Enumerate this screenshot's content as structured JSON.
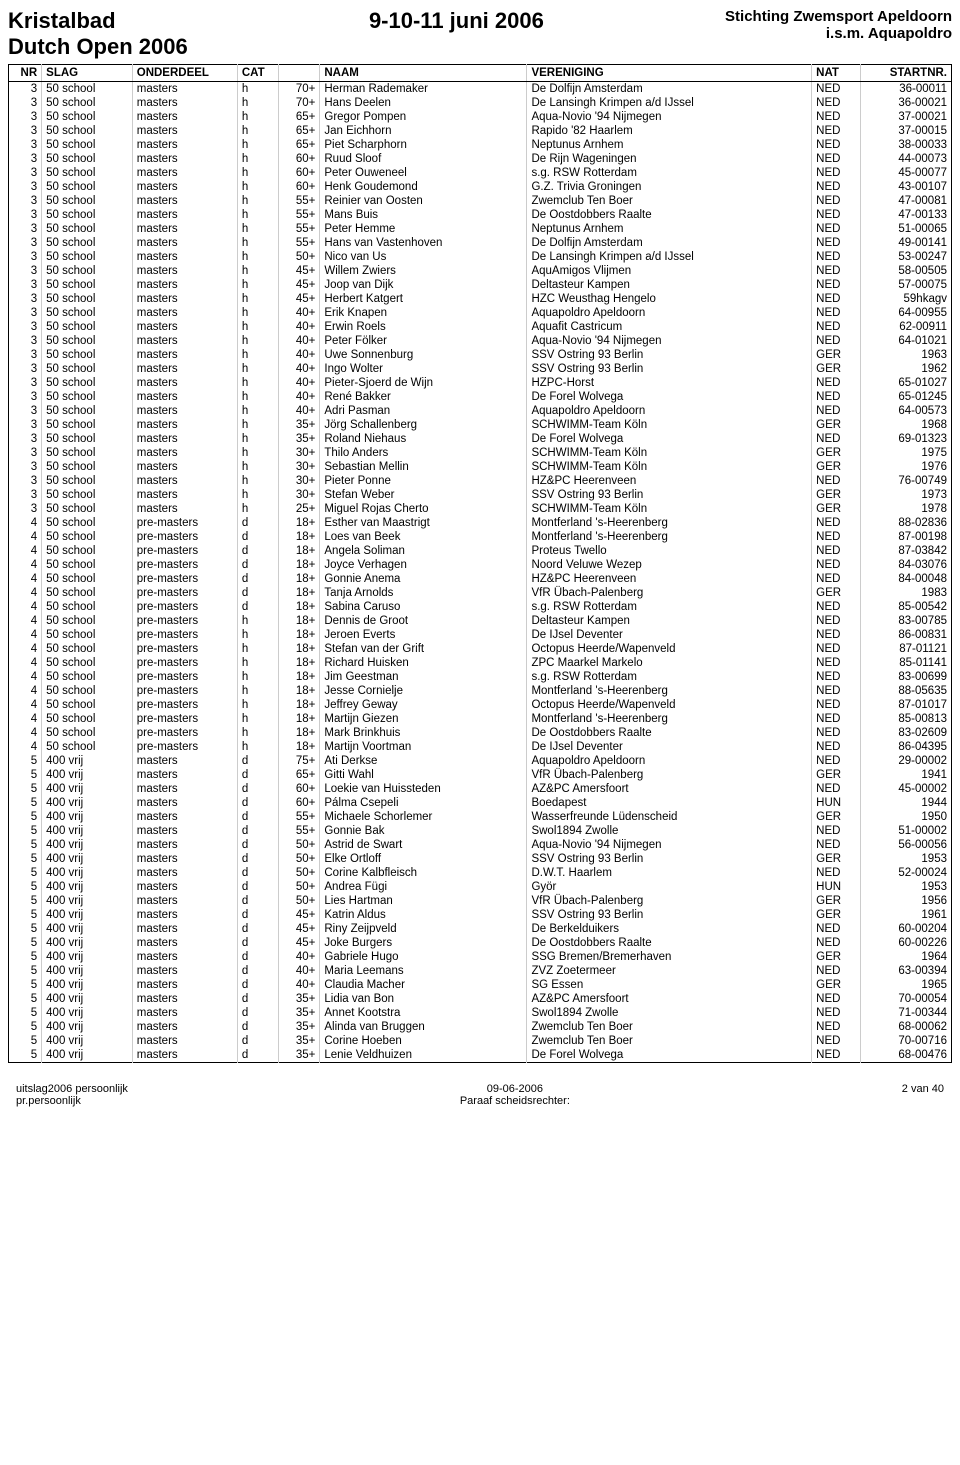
{
  "header": {
    "title_line1": "Kristalbad",
    "title_line2": "Dutch Open 2006",
    "date": "9-10-11 juni 2006",
    "org_line1": "Stichting Zwemsport Apeldoorn",
    "org_line2": "i.s.m. Aquapoldro"
  },
  "columns": [
    "NR",
    "SLAG",
    "ONDERDEEL",
    "CAT",
    "",
    "NAAM",
    "VERENIGING",
    "NAT",
    "STARTNR."
  ],
  "rows": [
    [
      "3",
      "50 school",
      "masters",
      "h",
      "70+",
      "Herman Rademaker",
      "De Dolfijn Amsterdam",
      "NED",
      "36-00011"
    ],
    [
      "3",
      "50 school",
      "masters",
      "h",
      "70+",
      "Hans Deelen",
      "De Lansingh Krimpen a/d IJssel",
      "NED",
      "36-00021"
    ],
    [
      "3",
      "50 school",
      "masters",
      "h",
      "65+",
      "Gregor Pompen",
      "Aqua-Novio '94 Nijmegen",
      "NED",
      "37-00021"
    ],
    [
      "3",
      "50 school",
      "masters",
      "h",
      "65+",
      "Jan Eichhorn",
      "Rapido '82 Haarlem",
      "NED",
      "37-00015"
    ],
    [
      "3",
      "50 school",
      "masters",
      "h",
      "65+",
      "Piet Scharphorn",
      "Neptunus Arnhem",
      "NED",
      "38-00033"
    ],
    [
      "3",
      "50 school",
      "masters",
      "h",
      "60+",
      "Ruud Sloof",
      "De Rijn Wageningen",
      "NED",
      "44-00073"
    ],
    [
      "3",
      "50 school",
      "masters",
      "h",
      "60+",
      "Peter Ouweneel",
      "s.g. RSW Rotterdam",
      "NED",
      "45-00077"
    ],
    [
      "3",
      "50 school",
      "masters",
      "h",
      "60+",
      "Henk Goudemond",
      "G.Z. Trivia Groningen",
      "NED",
      "43-00107"
    ],
    [
      "3",
      "50 school",
      "masters",
      "h",
      "55+",
      "Reinier van Oosten",
      "Zwemclub Ten Boer",
      "NED",
      "47-00081"
    ],
    [
      "3",
      "50 school",
      "masters",
      "h",
      "55+",
      "Mans Buis",
      "De Oostdobbers Raalte",
      "NED",
      "47-00133"
    ],
    [
      "3",
      "50 school",
      "masters",
      "h",
      "55+",
      "Peter Hemme",
      "Neptunus Arnhem",
      "NED",
      "51-00065"
    ],
    [
      "3",
      "50 school",
      "masters",
      "h",
      "55+",
      "Hans van Vastenhoven",
      "De Dolfijn Amsterdam",
      "NED",
      "49-00141"
    ],
    [
      "3",
      "50 school",
      "masters",
      "h",
      "50+",
      "Nico van Us",
      "De Lansingh Krimpen a/d IJssel",
      "NED",
      "53-00247"
    ],
    [
      "3",
      "50 school",
      "masters",
      "h",
      "45+",
      "Willem Zwiers",
      "AquAmigos Vlijmen",
      "NED",
      "58-00505"
    ],
    [
      "3",
      "50 school",
      "masters",
      "h",
      "45+",
      "Joop van Dijk",
      "Deltasteur Kampen",
      "NED",
      "57-00075"
    ],
    [
      "3",
      "50 school",
      "masters",
      "h",
      "45+",
      "Herbert Katgert",
      "HZC Weusthag Hengelo",
      "NED",
      "59hkagv"
    ],
    [
      "3",
      "50 school",
      "masters",
      "h",
      "40+",
      "Erik Knapen",
      "Aquapoldro Apeldoorn",
      "NED",
      "64-00955"
    ],
    [
      "3",
      "50 school",
      "masters",
      "h",
      "40+",
      "Erwin Roels",
      "Aquafit Castricum",
      "NED",
      "62-00911"
    ],
    [
      "3",
      "50 school",
      "masters",
      "h",
      "40+",
      "Peter Fölker",
      "Aqua-Novio '94 Nijmegen",
      "NED",
      "64-01021"
    ],
    [
      "3",
      "50 school",
      "masters",
      "h",
      "40+",
      "Uwe Sonnenburg",
      "SSV Ostring 93 Berlin",
      "GER",
      "1963"
    ],
    [
      "3",
      "50 school",
      "masters",
      "h",
      "40+",
      "Ingo Wolter",
      "SSV Ostring 93 Berlin",
      "GER",
      "1962"
    ],
    [
      "3",
      "50 school",
      "masters",
      "h",
      "40+",
      "Pieter-Sjoerd de Wijn",
      "HZPC-Horst",
      "NED",
      "65-01027"
    ],
    [
      "3",
      "50 school",
      "masters",
      "h",
      "40+",
      "René Bakker",
      "De Forel Wolvega",
      "NED",
      "65-01245"
    ],
    [
      "3",
      "50 school",
      "masters",
      "h",
      "40+",
      "Adri Pasman",
      "Aquapoldro Apeldoorn",
      "NED",
      "64-00573"
    ],
    [
      "3",
      "50 school",
      "masters",
      "h",
      "35+",
      "Jörg Schallenberg",
      "SCHWIMM-Team Köln",
      "GER",
      "1968"
    ],
    [
      "3",
      "50 school",
      "masters",
      "h",
      "35+",
      "Roland Niehaus",
      "De Forel Wolvega",
      "NED",
      "69-01323"
    ],
    [
      "3",
      "50 school",
      "masters",
      "h",
      "30+",
      "Thilo Anders",
      "SCHWIMM-Team Köln",
      "GER",
      "1975"
    ],
    [
      "3",
      "50 school",
      "masters",
      "h",
      "30+",
      "Sebastian Mellin",
      "SCHWIMM-Team Köln",
      "GER",
      "1976"
    ],
    [
      "3",
      "50 school",
      "masters",
      "h",
      "30+",
      "Pieter Ponne",
      "HZ&PC Heerenveen",
      "NED",
      "76-00749"
    ],
    [
      "3",
      "50 school",
      "masters",
      "h",
      "30+",
      "Stefan Weber",
      "SSV Ostring 93 Berlin",
      "GER",
      "1973"
    ],
    [
      "3",
      "50 school",
      "masters",
      "h",
      "25+",
      "Miguel Rojas Cherto",
      "SCHWIMM-Team Köln",
      "GER",
      "1978"
    ],
    [
      "4",
      "50 school",
      "pre-masters",
      "d",
      "18+",
      "Esther van Maastrigt",
      "Montferland 's-Heerenberg",
      "NED",
      "88-02836"
    ],
    [
      "4",
      "50 school",
      "pre-masters",
      "d",
      "18+",
      "Loes van Beek",
      "Montferland 's-Heerenberg",
      "NED",
      "87-00198"
    ],
    [
      "4",
      "50 school",
      "pre-masters",
      "d",
      "18+",
      "Angela Soliman",
      "Proteus Twello",
      "NED",
      "87-03842"
    ],
    [
      "4",
      "50 school",
      "pre-masters",
      "d",
      "18+",
      "Joyce Verhagen",
      "Noord Veluwe Wezep",
      "NED",
      "84-03076"
    ],
    [
      "4",
      "50 school",
      "pre-masters",
      "d",
      "18+",
      "Gonnie Anema",
      "HZ&PC Heerenveen",
      "NED",
      "84-00048"
    ],
    [
      "4",
      "50 school",
      "pre-masters",
      "d",
      "18+",
      "Tanja Arnolds",
      "VfR Übach-Palenberg",
      "GER",
      "1983"
    ],
    [
      "4",
      "50 school",
      "pre-masters",
      "d",
      "18+",
      "Sabina Caruso",
      "s.g. RSW Rotterdam",
      "NED",
      "85-00542"
    ],
    [
      "4",
      "50 school",
      "pre-masters",
      "h",
      "18+",
      "Dennis de Groot",
      "Deltasteur Kampen",
      "NED",
      "83-00785"
    ],
    [
      "4",
      "50 school",
      "pre-masters",
      "h",
      "18+",
      "Jeroen Everts",
      "De IJsel Deventer",
      "NED",
      "86-00831"
    ],
    [
      "4",
      "50 school",
      "pre-masters",
      "h",
      "18+",
      "Stefan van der Grift",
      "Octopus Heerde/Wapenveld",
      "NED",
      "87-01121"
    ],
    [
      "4",
      "50 school",
      "pre-masters",
      "h",
      "18+",
      "Richard Huisken",
      "ZPC Maarkel Markelo",
      "NED",
      "85-01141"
    ],
    [
      "4",
      "50 school",
      "pre-masters",
      "h",
      "18+",
      "Jim Geestman",
      "s.g. RSW Rotterdam",
      "NED",
      "83-00699"
    ],
    [
      "4",
      "50 school",
      "pre-masters",
      "h",
      "18+",
      "Jesse Cornielje",
      "Montferland 's-Heerenberg",
      "NED",
      "88-05635"
    ],
    [
      "4",
      "50 school",
      "pre-masters",
      "h",
      "18+",
      "Jeffrey Geway",
      "Octopus Heerde/Wapenveld",
      "NED",
      "87-01017"
    ],
    [
      "4",
      "50 school",
      "pre-masters",
      "h",
      "18+",
      "Martijn Giezen",
      "Montferland 's-Heerenberg",
      "NED",
      "85-00813"
    ],
    [
      "4",
      "50 school",
      "pre-masters",
      "h",
      "18+",
      "Mark Brinkhuis",
      "De Oostdobbers Raalte",
      "NED",
      "83-02609"
    ],
    [
      "4",
      "50 school",
      "pre-masters",
      "h",
      "18+",
      "Martijn Voortman",
      "De IJsel Deventer",
      "NED",
      "86-04395"
    ],
    [
      "5",
      "400 vrij",
      "masters",
      "d",
      "75+",
      "Ati Derkse",
      "Aquapoldro Apeldoorn",
      "NED",
      "29-00002"
    ],
    [
      "5",
      "400 vrij",
      "masters",
      "d",
      "65+",
      "Gitti Wahl",
      "VfR Übach-Palenberg",
      "GER",
      "1941"
    ],
    [
      "5",
      "400 vrij",
      "masters",
      "d",
      "60+",
      "Loekie van Huissteden",
      "AZ&PC Amersfoort",
      "NED",
      "45-00002"
    ],
    [
      "5",
      "400 vrij",
      "masters",
      "d",
      "60+",
      "Pálma Csepeli",
      "Boedapest",
      "HUN",
      "1944"
    ],
    [
      "5",
      "400 vrij",
      "masters",
      "d",
      "55+",
      "Michaele Schorlemer",
      "Wasserfreunde Lüdenscheid",
      "GER",
      "1950"
    ],
    [
      "5",
      "400 vrij",
      "masters",
      "d",
      "55+",
      "Gonnie Bak",
      "Swol1894 Zwolle",
      "NED",
      "51-00002"
    ],
    [
      "5",
      "400 vrij",
      "masters",
      "d",
      "50+",
      "Astrid de Swart",
      "Aqua-Novio '94 Nijmegen",
      "NED",
      "56-00056"
    ],
    [
      "5",
      "400 vrij",
      "masters",
      "d",
      "50+",
      "Elke Ortloff",
      "SSV Ostring 93 Berlin",
      "GER",
      "1953"
    ],
    [
      "5",
      "400 vrij",
      "masters",
      "d",
      "50+",
      "Corine Kalbfleisch",
      "D.W.T. Haarlem",
      "NED",
      "52-00024"
    ],
    [
      "5",
      "400 vrij",
      "masters",
      "d",
      "50+",
      "Andrea Fügi",
      "Györ",
      "HUN",
      "1953"
    ],
    [
      "5",
      "400 vrij",
      "masters",
      "d",
      "50+",
      "Lies Hartman",
      "VfR Übach-Palenberg",
      "GER",
      "1956"
    ],
    [
      "5",
      "400 vrij",
      "masters",
      "d",
      "45+",
      "Katrin Aldus",
      "SSV Ostring 93 Berlin",
      "GER",
      "1961"
    ],
    [
      "5",
      "400 vrij",
      "masters",
      "d",
      "45+",
      "Riny Zeijpveld",
      "De Berkelduikers",
      "NED",
      "60-00204"
    ],
    [
      "5",
      "400 vrij",
      "masters",
      "d",
      "45+",
      "Joke Burgers",
      "De Oostdobbers Raalte",
      "NED",
      "60-00226"
    ],
    [
      "5",
      "400 vrij",
      "masters",
      "d",
      "40+",
      "Gabriele Hugo",
      "SSG Bremen/Bremerhaven",
      "GER",
      "1964"
    ],
    [
      "5",
      "400 vrij",
      "masters",
      "d",
      "40+",
      "Maria Leemans",
      "ZVZ Zoetermeer",
      "NED",
      "63-00394"
    ],
    [
      "5",
      "400 vrij",
      "masters",
      "d",
      "40+",
      "Claudia Macher",
      "SG Essen",
      "GER",
      "1965"
    ],
    [
      "5",
      "400 vrij",
      "masters",
      "d",
      "35+",
      "Lidia van Bon",
      "AZ&PC Amersfoort",
      "NED",
      "70-00054"
    ],
    [
      "5",
      "400 vrij",
      "masters",
      "d",
      "35+",
      "Annet Kootstra",
      "Swol1894 Zwolle",
      "NED",
      "71-00344"
    ],
    [
      "5",
      "400 vrij",
      "masters",
      "d",
      "35+",
      "Alinda van Bruggen",
      "Zwemclub Ten Boer",
      "NED",
      "68-00062"
    ],
    [
      "5",
      "400 vrij",
      "masters",
      "d",
      "35+",
      "Corine Hoeben",
      "Zwemclub Ten Boer",
      "NED",
      "70-00716"
    ],
    [
      "5",
      "400 vrij",
      "masters",
      "d",
      "35+",
      "Lenie Veldhuizen",
      "De Forel Wolvega",
      "NED",
      "68-00476"
    ]
  ],
  "footer": {
    "left_line1": "uitslag2006 persoonlijk",
    "left_line2": "pr.persoonlijk",
    "center_line1": "09-06-2006",
    "center_line2": "Paraaf scheidsrechter:",
    "right": "2 van 40"
  }
}
